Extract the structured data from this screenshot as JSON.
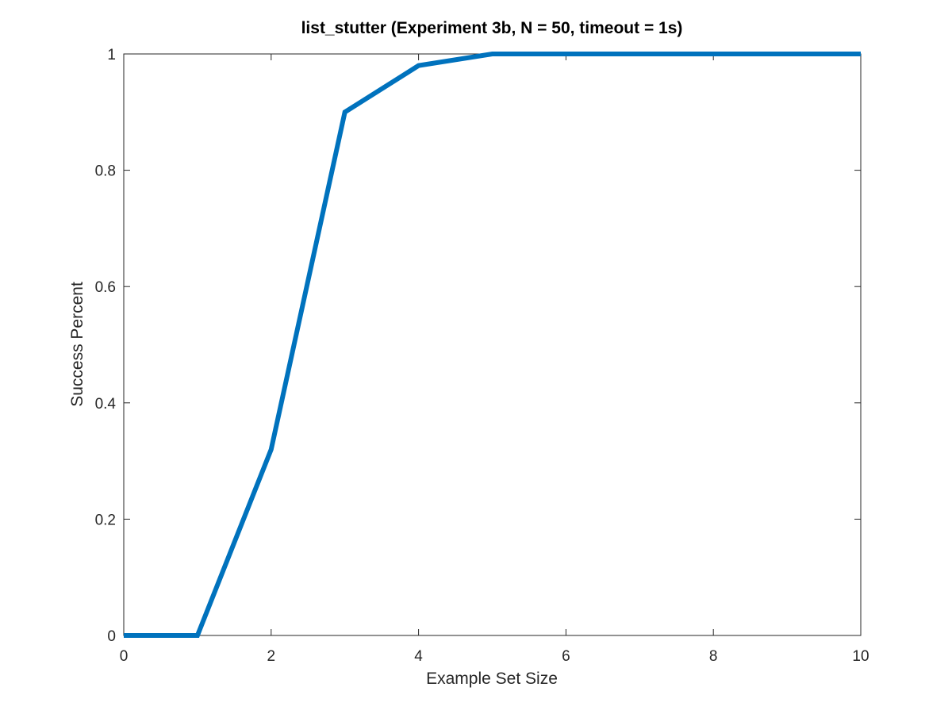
{
  "chart_data": {
    "type": "line",
    "title": "list_stutter (Experiment 3b, N = 50, timeout = 1s)",
    "xlabel": "Example Set Size",
    "ylabel": "Success Percent",
    "xlim": [
      0,
      10
    ],
    "ylim": [
      0,
      1
    ],
    "xticks": [
      0,
      2,
      4,
      6,
      8,
      10
    ],
    "yticks": [
      0,
      0.2,
      0.4,
      0.6,
      0.8,
      1
    ],
    "xtick_labels": [
      "0",
      "2",
      "4",
      "6",
      "8",
      "10"
    ],
    "ytick_labels": [
      "0",
      "0.2",
      "0.4",
      "0.6",
      "0.8",
      "1"
    ],
    "grid": false,
    "series": [
      {
        "x": [
          0,
          1,
          2,
          3,
          4,
          5,
          6,
          7,
          8,
          9,
          10
        ],
        "values": [
          0,
          0,
          0.32,
          0.9,
          0.98,
          1,
          1,
          1,
          1,
          1,
          1
        ],
        "color": "#0072BD"
      }
    ]
  }
}
